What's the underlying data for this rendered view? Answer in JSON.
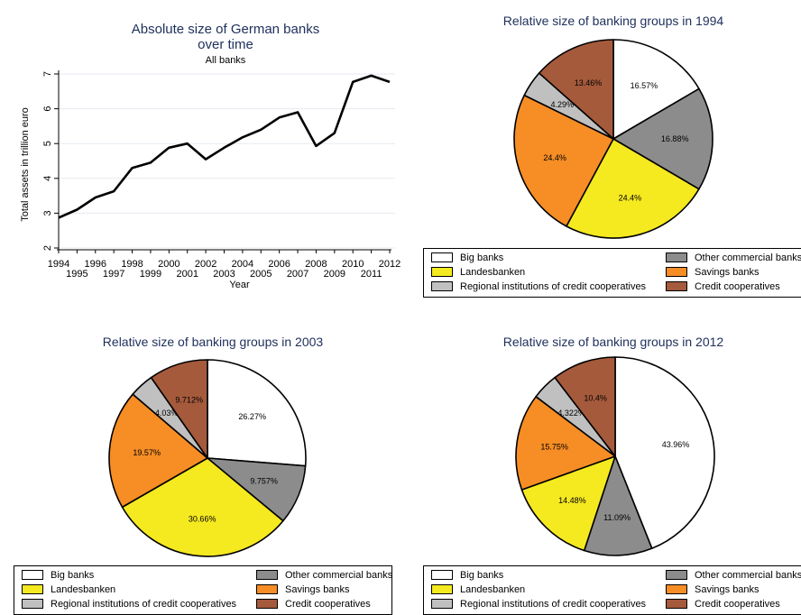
{
  "chart_data": [
    {
      "type": "line",
      "title": "Absolute size of German banks",
      "title_line2": "over time",
      "subtitle": "All banks",
      "xlabel": "Year",
      "ylabel": "Total assets in trillion euro",
      "xlim": [
        1994,
        2012
      ],
      "ylim": [
        2,
        7
      ],
      "yticks": [
        2,
        3,
        4,
        5,
        6,
        7
      ],
      "xticks_top": [
        1994,
        1996,
        1998,
        2000,
        2002,
        2004,
        2006,
        2008,
        2010,
        2012
      ],
      "xticks_bottom": [
        1995,
        1997,
        1999,
        2001,
        2003,
        2005,
        2007,
        2009,
        2011
      ],
      "grid": true,
      "color": "#000000",
      "x": [
        1994,
        1995,
        1996,
        1997,
        1998,
        1999,
        2000,
        2001,
        2002,
        2003,
        2004,
        2005,
        2006,
        2007,
        2008,
        2009,
        2010,
        2011,
        2012
      ],
      "y": [
        2.87,
        3.1,
        3.45,
        3.63,
        4.3,
        4.45,
        4.88,
        5.0,
        4.55,
        4.88,
        5.18,
        5.4,
        5.75,
        5.9,
        4.93,
        5.3,
        6.77,
        6.95,
        6.77
      ]
    },
    {
      "type": "pie",
      "title": "Relative size of banking groups in 1994",
      "slices": [
        {
          "name": "Big banks",
          "value": 16.57,
          "label": "16.57%",
          "color": "#ffffff"
        },
        {
          "name": "Other commercial banks",
          "value": 16.88,
          "label": "16.88%",
          "color": "#8c8c8c"
        },
        {
          "name": "Landesbanken",
          "value": 24.4,
          "label": "24.4%",
          "color": "#f5e920"
        },
        {
          "name": "Savings banks",
          "value": 24.4,
          "label": "24.4%",
          "color": "#f68d25"
        },
        {
          "name": "Regional institutions of credit cooperatives",
          "value": 4.29,
          "label": "4.29%",
          "color": "#c0c0c0"
        },
        {
          "name": "Credit cooperatives",
          "value": 13.46,
          "label": "13.46%",
          "color": "#a55a3c"
        }
      ]
    },
    {
      "type": "pie",
      "title": "Relative size of banking groups in 2003",
      "slices": [
        {
          "name": "Big banks",
          "value": 26.27,
          "label": "26.27%",
          "color": "#ffffff"
        },
        {
          "name": "Other commercial banks",
          "value": 9.757,
          "label": "9.757%",
          "color": "#8c8c8c"
        },
        {
          "name": "Landesbanken",
          "value": 30.66,
          "label": "30.66%",
          "color": "#f5e920"
        },
        {
          "name": "Savings banks",
          "value": 19.57,
          "label": "19.57%",
          "color": "#f68d25"
        },
        {
          "name": "Regional institutions of credit cooperatives",
          "value": 4.03,
          "label": "4.03%",
          "color": "#c0c0c0"
        },
        {
          "name": "Credit cooperatives",
          "value": 9.712,
          "label": "9.712%",
          "color": "#a55a3c"
        }
      ]
    },
    {
      "type": "pie",
      "title": "Relative size of banking groups in 2012",
      "slices": [
        {
          "name": "Big banks",
          "value": 43.96,
          "label": "43.96%",
          "color": "#ffffff"
        },
        {
          "name": "Other commercial banks",
          "value": 11.09,
          "label": "11.09%",
          "color": "#8c8c8c"
        },
        {
          "name": "Landesbanken",
          "value": 14.48,
          "label": "14.48%",
          "color": "#f5e920"
        },
        {
          "name": "Savings banks",
          "value": 15.75,
          "label": "15.75%",
          "color": "#f68d25"
        },
        {
          "name": "Regional institutions of credit cooperatives",
          "value": 4.322,
          "label": "4.322%",
          "color": "#c0c0c0"
        },
        {
          "name": "Credit cooperatives",
          "value": 10.4,
          "label": "10.4%",
          "color": "#a55a3c"
        }
      ]
    }
  ],
  "legend": {
    "items": [
      {
        "label": "Big banks",
        "color": "#ffffff"
      },
      {
        "label": "Other commercial banks",
        "color": "#8c8c8c"
      },
      {
        "label": "Landesbanken",
        "color": "#f5e920"
      },
      {
        "label": "Savings banks",
        "color": "#f68d25"
      },
      {
        "label": "Regional institutions of credit cooperatives",
        "color": "#c0c0c0"
      },
      {
        "label": "Credit cooperatives",
        "color": "#a55a3c"
      }
    ]
  }
}
